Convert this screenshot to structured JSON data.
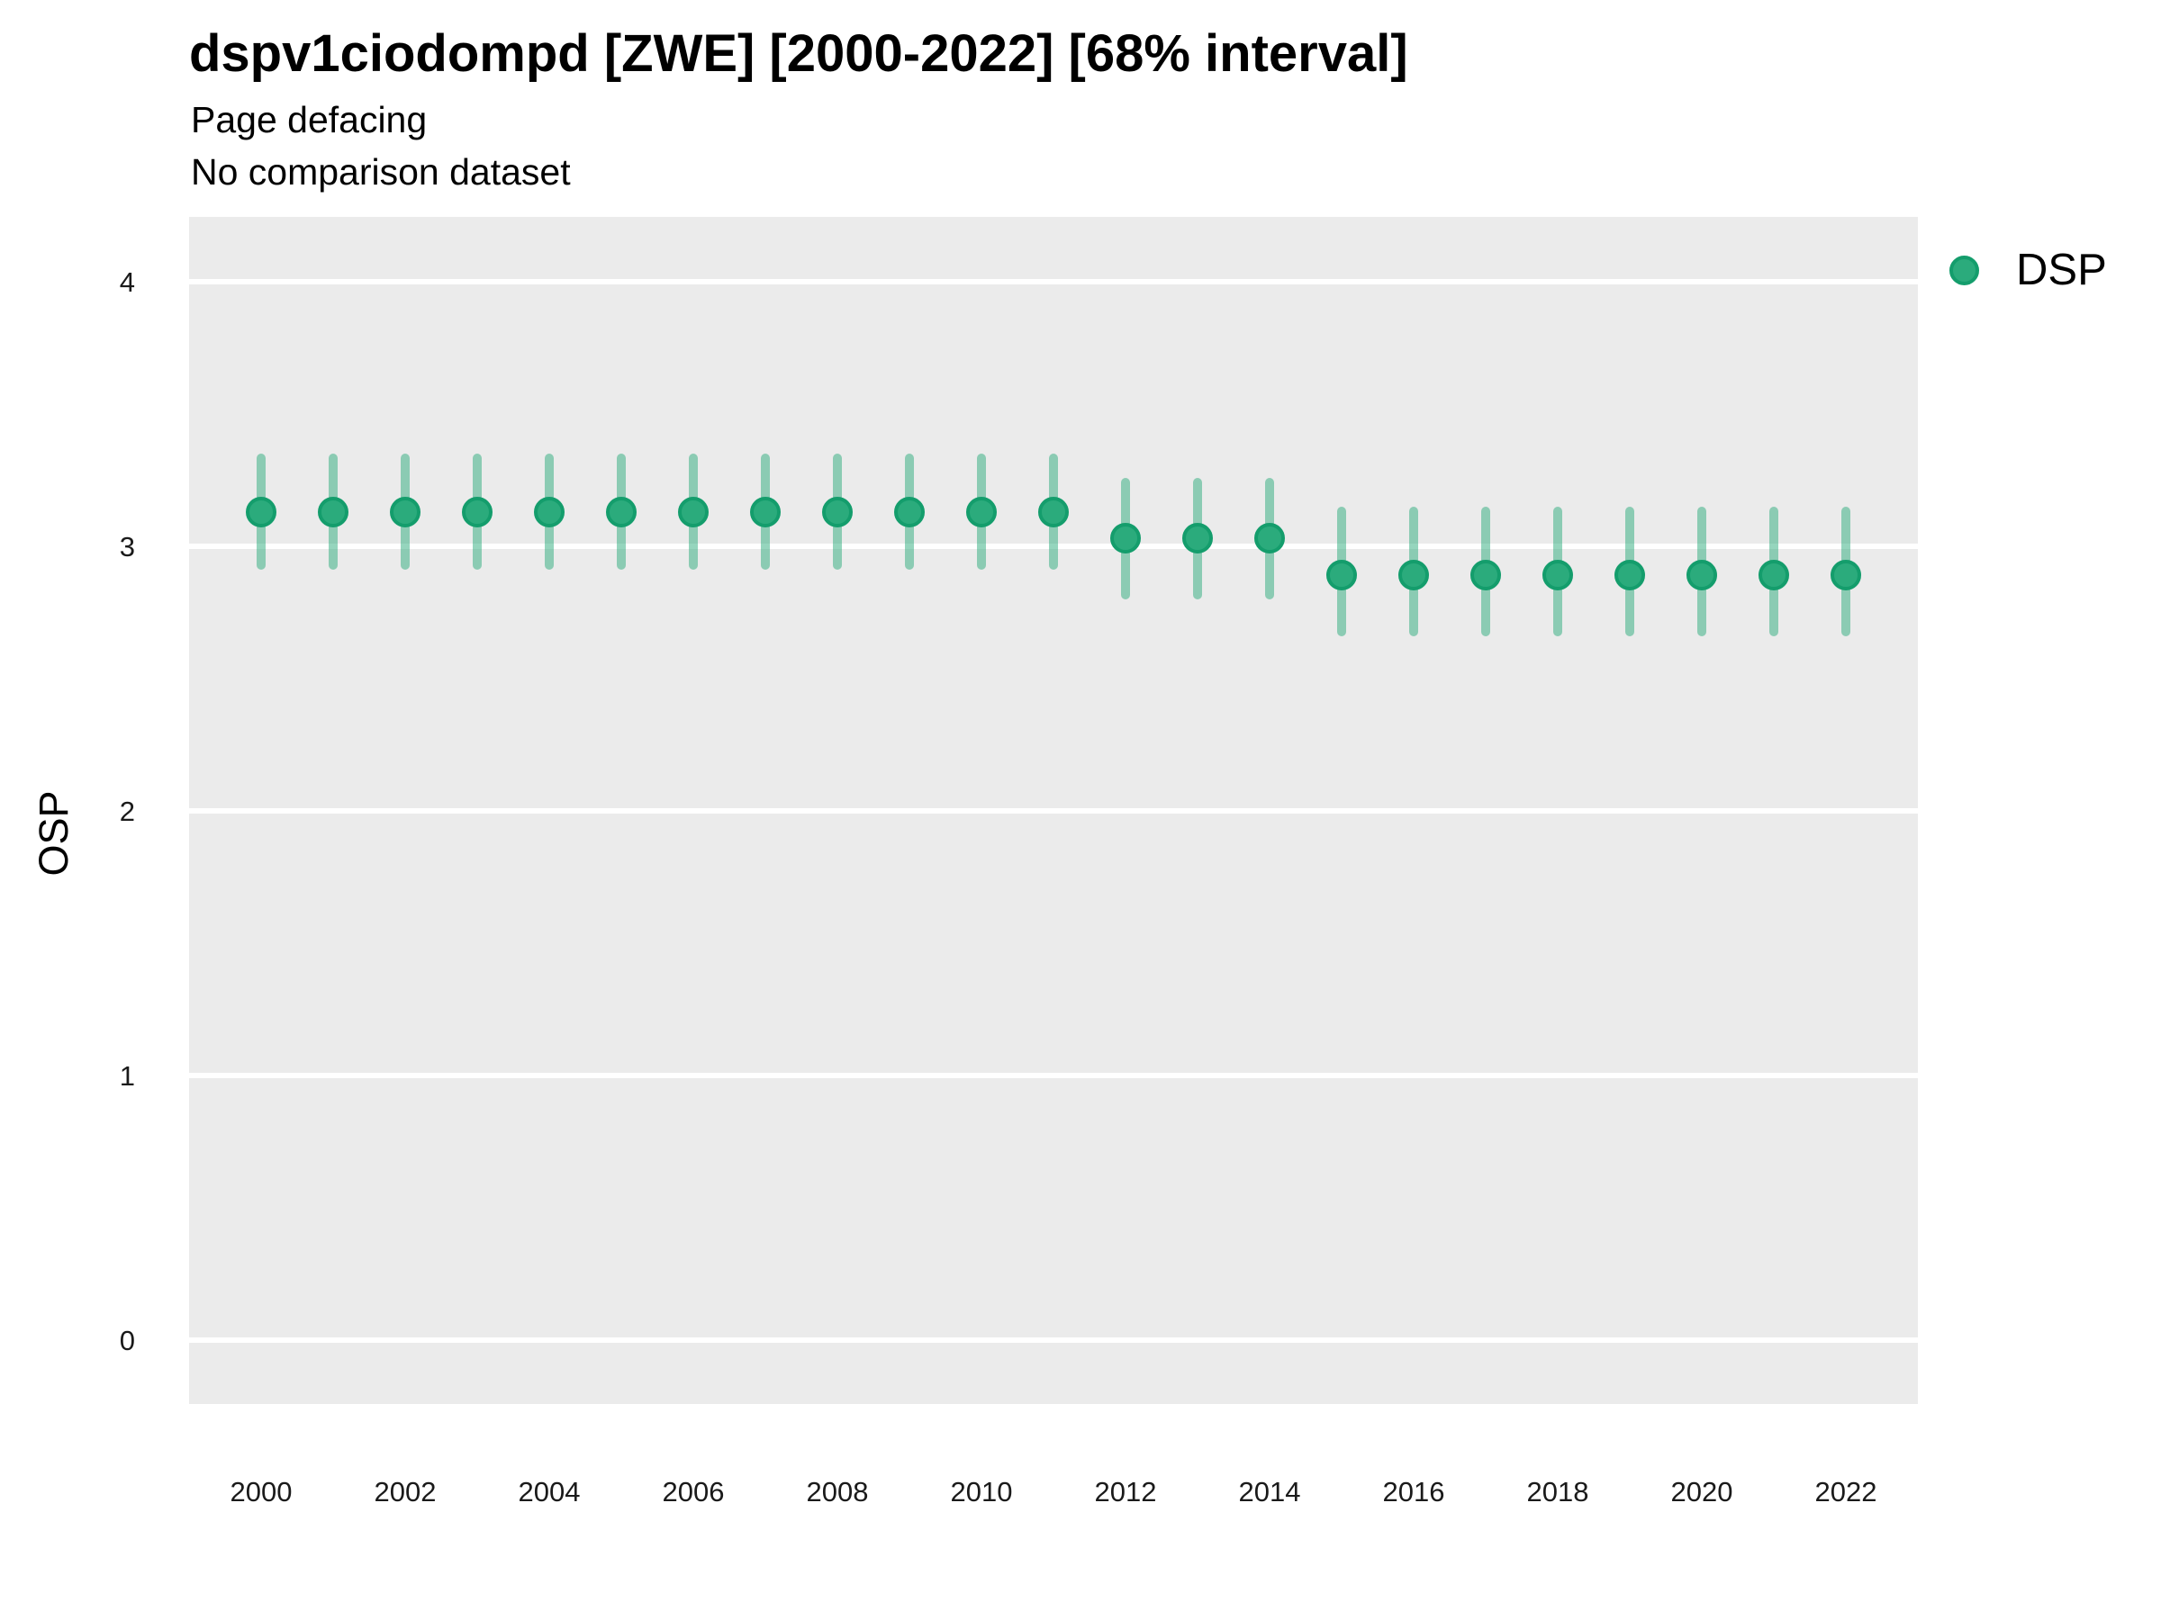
{
  "chart_data": {
    "type": "scatter",
    "title": "dspv1ciodompd [ZWE] [2000-2022] [68% interval]",
    "subtitle": "Page defacing",
    "comparison_note": "No comparison dataset",
    "xlabel": "",
    "ylabel": "OSP",
    "interval_label": "68% interval",
    "country_code": "ZWE",
    "legend": {
      "position": "right",
      "entries": [
        {
          "label": "DSP",
          "marker": "circle"
        }
      ]
    },
    "x": [
      2000,
      2001,
      2002,
      2003,
      2004,
      2005,
      2006,
      2007,
      2008,
      2009,
      2010,
      2011,
      2012,
      2013,
      2014,
      2015,
      2016,
      2017,
      2018,
      2019,
      2020,
      2021,
      2022
    ],
    "series": [
      {
        "name": "DSP",
        "estimates": [
          3.13,
          3.13,
          3.13,
          3.13,
          3.13,
          3.13,
          3.13,
          3.13,
          3.13,
          3.13,
          3.13,
          3.13,
          3.03,
          3.03,
          3.03,
          2.89,
          2.89,
          2.89,
          2.89,
          2.89,
          2.89,
          2.89,
          2.89
        ],
        "lower_68": [
          2.91,
          2.91,
          2.91,
          2.91,
          2.91,
          2.91,
          2.91,
          2.91,
          2.91,
          2.91,
          2.91,
          2.91,
          2.8,
          2.8,
          2.8,
          2.66,
          2.66,
          2.66,
          2.66,
          2.66,
          2.66,
          2.66,
          2.66
        ],
        "upper_68": [
          3.35,
          3.35,
          3.35,
          3.35,
          3.35,
          3.35,
          3.35,
          3.35,
          3.35,
          3.35,
          3.35,
          3.35,
          3.26,
          3.26,
          3.26,
          3.15,
          3.15,
          3.15,
          3.15,
          3.15,
          3.15,
          3.15,
          3.15
        ]
      }
    ],
    "x_ticks": [
      2000,
      2002,
      2004,
      2006,
      2008,
      2010,
      2012,
      2014,
      2016,
      2018,
      2020,
      2022
    ],
    "y_ticks": [
      0,
      1,
      2,
      3,
      4
    ],
    "xlim": [
      1999,
      2023
    ],
    "ylim": [
      -0.2415,
      4.2449
    ],
    "grid": "horizontal-major-only",
    "legend_position": "right"
  },
  "colors": {
    "point_fill": "#2BAB7C",
    "point_border": "#149D6C",
    "error_bar": "#2BAB7C",
    "panel_background": "#EBEBEB",
    "gridline": "#FFFFFF",
    "title_text": "#000000",
    "tick_text": "#1A1A1A"
  }
}
